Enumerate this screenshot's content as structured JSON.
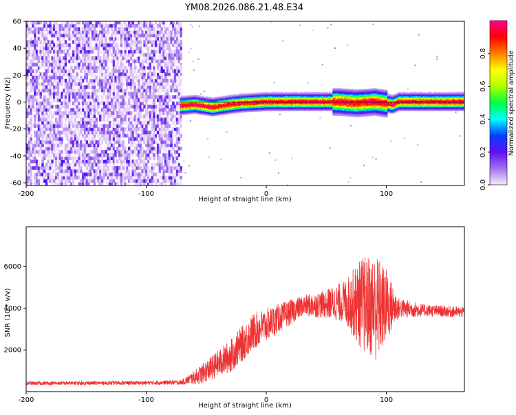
{
  "page": {
    "title": "YM08.2026.086.21.48.E34"
  },
  "chart_data": [
    {
      "type": "heatmap",
      "title": "YM08.2026.086.21.48.E34",
      "xlabel": "Height of straight line (km)",
      "ylabel": "Frequency (Hz)",
      "xlim": [
        -200,
        165
      ],
      "ylim": [
        -62,
        60
      ],
      "xticks": [
        -200,
        -100,
        0,
        100
      ],
      "yticks": [
        60,
        40,
        20,
        0,
        -20,
        -40,
        -60
      ],
      "grid": false,
      "colorbar": {
        "label": "Normalized spectral amplitude",
        "range": [
          0,
          1
        ],
        "ticks": [
          0.0,
          0.2,
          0.4,
          0.6,
          0.8
        ],
        "colormap": [
          "#f4ecfa",
          "#a070f0",
          "#6010f0",
          "#0040ff",
          "#00ffff",
          "#00ff40",
          "#b0ff00",
          "#ffff00",
          "#ff8000",
          "#ff0000",
          "#ff0090"
        ]
      },
      "regions": [
        {
          "x_range": [
            -200,
            -72
          ],
          "y_range": [
            -62,
            60
          ],
          "amplitude": [
            0.0,
            0.18
          ],
          "description_pattern": "noise"
        },
        {
          "x_range": [
            -72,
            165
          ],
          "y_range": [
            -5,
            5
          ],
          "amplitude": [
            0.2,
            1.0
          ],
          "description_pattern": "signal-band"
        }
      ],
      "signal_center_hz": [
        [
          -72,
          -3
        ],
        [
          -60,
          -2
        ],
        [
          -45,
          -4
        ],
        [
          -30,
          -2
        ],
        [
          -20,
          -1
        ],
        [
          0,
          0
        ],
        [
          20,
          0
        ],
        [
          40,
          0
        ],
        [
          60,
          0
        ],
        [
          75,
          -1
        ],
        [
          90,
          0
        ],
        [
          105,
          -2
        ],
        [
          110,
          0
        ],
        [
          130,
          0
        ],
        [
          165,
          0
        ]
      ]
    },
    {
      "type": "line",
      "xlabel": "Height of straight line (km)",
      "ylabel": "SNR (10 * v/v)",
      "xlim": [
        -200,
        165
      ],
      "ylim": [
        0,
        7900
      ],
      "xticks": [
        -200,
        -100,
        0,
        100
      ],
      "yticks": [
        2000,
        4000,
        6000
      ],
      "grid": false,
      "series": [
        {
          "color": "#ee3333",
          "envelope": [
            {
              "x": -200,
              "mean": 400,
              "spread": 90
            },
            {
              "x": -100,
              "mean": 420,
              "spread": 90
            },
            {
              "x": -70,
              "mean": 450,
              "spread": 120
            },
            {
              "x": -55,
              "mean": 800,
              "spread": 450
            },
            {
              "x": -30,
              "mean": 1700,
              "spread": 800
            },
            {
              "x": -10,
              "mean": 2900,
              "spread": 900
            },
            {
              "x": 10,
              "mean": 3500,
              "spread": 700
            },
            {
              "x": 30,
              "mean": 4100,
              "spread": 500
            },
            {
              "x": 50,
              "mean": 4200,
              "spread": 700
            },
            {
              "x": 65,
              "mean": 4300,
              "spread": 1000
            },
            {
              "x": 80,
              "mean": 4200,
              "spread": 2300
            },
            {
              "x": 92,
              "mean": 4000,
              "spread": 2600
            },
            {
              "x": 100,
              "mean": 4100,
              "spread": 1800
            },
            {
              "x": 110,
              "mean": 4000,
              "spread": 500
            },
            {
              "x": 130,
              "mean": 3900,
              "spread": 300
            },
            {
              "x": 165,
              "mean": 3800,
              "spread": 250
            }
          ]
        }
      ]
    }
  ]
}
